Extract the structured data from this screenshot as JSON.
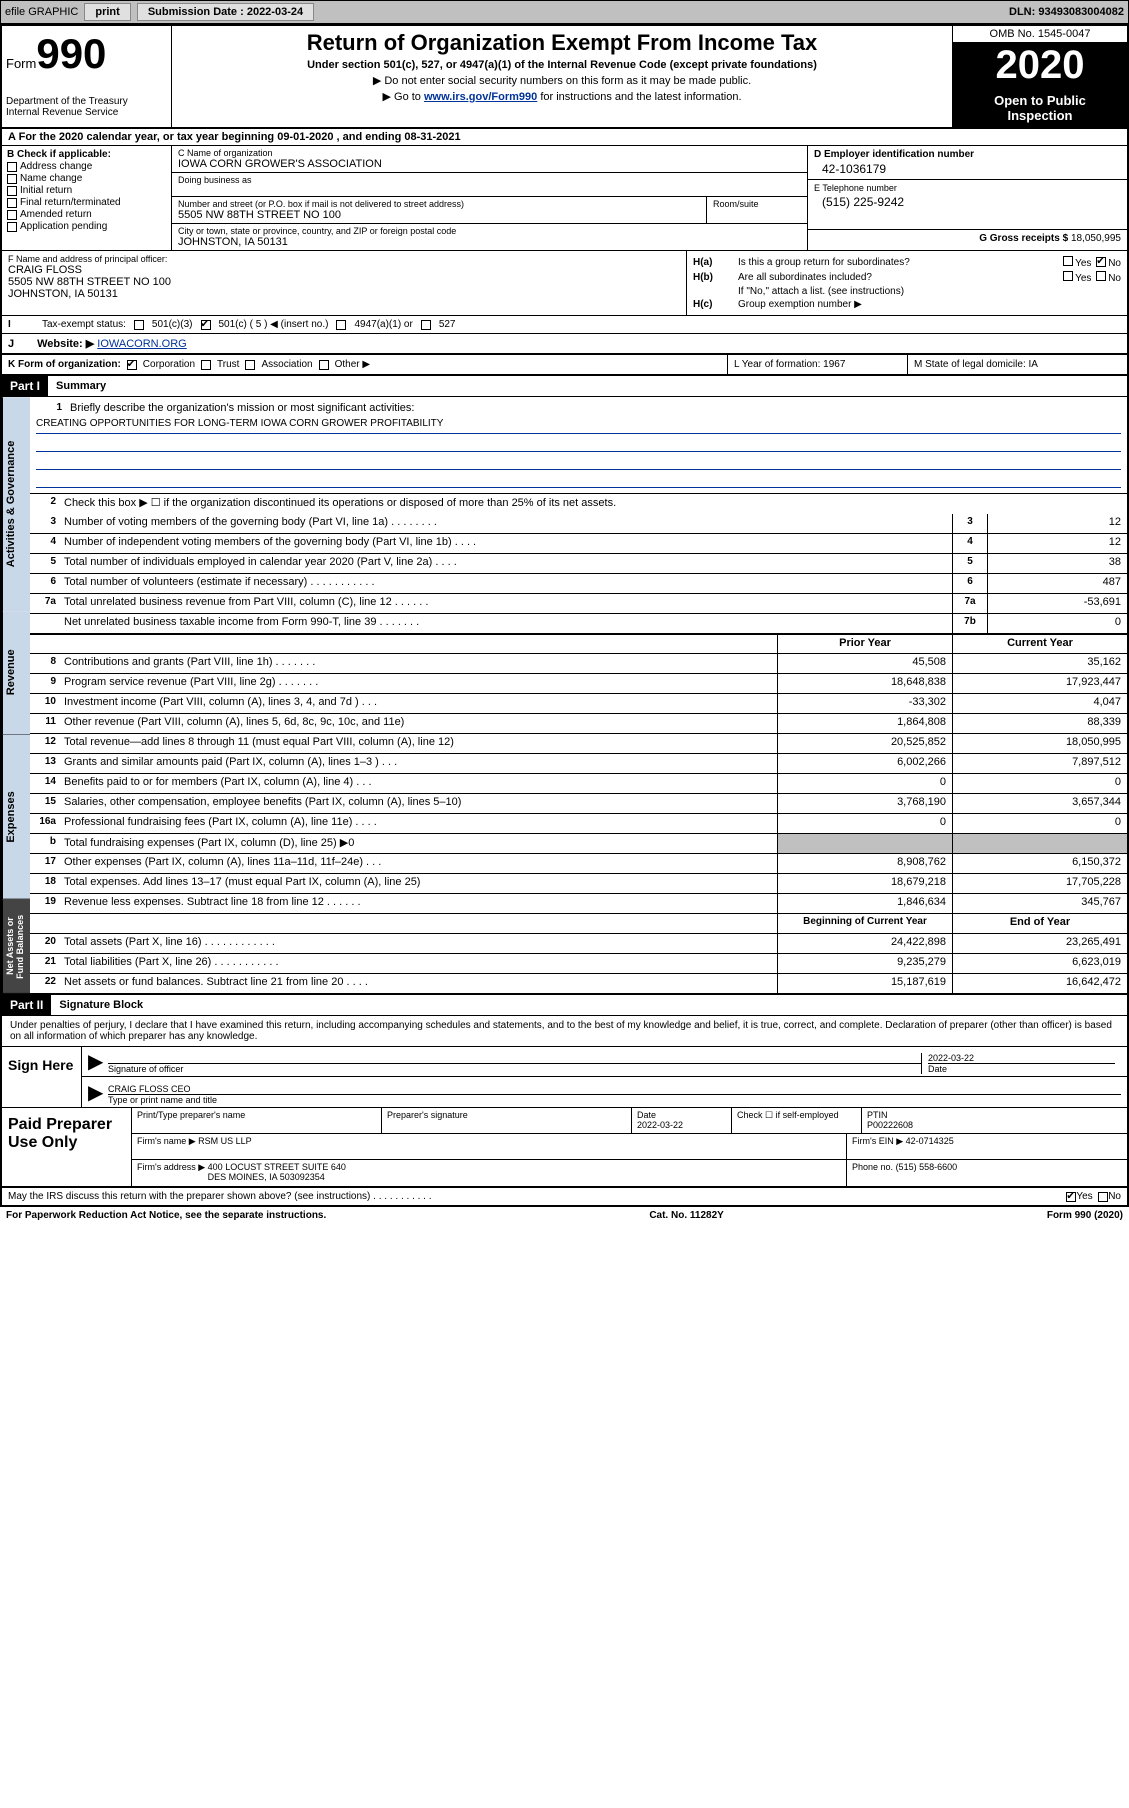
{
  "topbar": {
    "efile": "efile GRAPHIC",
    "print": "print",
    "sub_label": "Submission Date : 2022-03-24",
    "dln": "DLN: 93493083004082"
  },
  "header": {
    "form_word": "Form",
    "form_num": "990",
    "dept": "Department of the Treasury\nInternal Revenue Service",
    "title": "Return of Organization Exempt From Income Tax",
    "sub": "Under section 501(c), 527, or 4947(a)(1) of the Internal Revenue Code (except private foundations)",
    "note1": "▶ Do not enter social security numbers on this form as it may be made public.",
    "note2_pre": "▶ Go to ",
    "note2_link": "www.irs.gov/Form990",
    "note2_post": " for instructions and the latest information.",
    "omb": "OMB No. 1545-0047",
    "year": "2020",
    "open_pub": "Open to Public\nInspection"
  },
  "line_a": "For the 2020 calendar year, or tax year beginning 09-01-2020    , and ending 08-31-2021",
  "col_b": {
    "label": "B Check if applicable:",
    "opts": [
      "Address change",
      "Name change",
      "Initial return",
      "Final return/terminated",
      "Amended return",
      "Application pending"
    ]
  },
  "col_c": {
    "name_label": "C Name of organization",
    "name": "IOWA CORN GROWER'S ASSOCIATION",
    "dba_label": "Doing business as",
    "addr_label": "Number and street (or P.O. box if mail is not delivered to street address)",
    "addr": "5505 NW 88TH STREET NO 100",
    "room_label": "Room/suite",
    "city_label": "City or town, state or province, country, and ZIP or foreign postal code",
    "city": "JOHNSTON, IA  50131"
  },
  "col_d": {
    "label": "D Employer identification number",
    "val": "42-1036179"
  },
  "col_e": {
    "label": "E Telephone number",
    "val": "(515) 225-9242"
  },
  "col_g": {
    "label": "G Gross receipts $",
    "val": "18,050,995"
  },
  "col_f": {
    "label": "F  Name and address of principal officer:",
    "name": "CRAIG FLOSS",
    "addr": "5505 NW 88TH STREET NO 100\nJOHNSTON, IA  50131"
  },
  "col_h": {
    "a": "Is this a group return for subordinates?",
    "b": "Are all subordinates included?",
    "note": "If \"No,\" attach a list. (see instructions)",
    "c": "Group exemption number ▶"
  },
  "status": {
    "label": "Tax-exempt status:",
    "o1": "501(c)(3)",
    "o2": "501(c) ( 5 ) ◀ (insert no.)",
    "o3": "4947(a)(1) or",
    "o4": "527"
  },
  "line_j": {
    "label": "J",
    "text": "Website: ▶",
    "val": "IOWACORN.ORG"
  },
  "line_k": {
    "label": "K Form of organization:",
    "opts": [
      "Corporation",
      "Trust",
      "Association",
      "Other ▶"
    ],
    "l": "L Year of formation: 1967",
    "m": "M State of legal domicile: IA"
  },
  "part1": {
    "hdr": "Part I",
    "title": "Summary",
    "tabs": [
      "Activities & Governance",
      "Revenue",
      "Expenses",
      "Net Assets or\nFund Balances"
    ],
    "mission_label": "Briefly describe the organization's mission or most significant activities:",
    "mission": "CREATING OPPORTUNITIES FOR LONG-TERM IOWA CORN GROWER PROFITABILITY",
    "line2": "Check this box ▶ ☐  if the organization discontinued its operations or disposed of more than 25% of its net assets.",
    "lines_gov": [
      {
        "n": "3",
        "t": "Number of voting members of the governing body (Part VI, line 1a)   .   .   .   .   .   .   .   .",
        "c": "3",
        "v": "12"
      },
      {
        "n": "4",
        "t": "Number of independent voting members of the governing body (Part VI, line 1b)   .   .   .   .",
        "c": "4",
        "v": "12"
      },
      {
        "n": "5",
        "t": "Total number of individuals employed in calendar year 2020 (Part V, line 2a)   .   .   .   .",
        "c": "5",
        "v": "38"
      },
      {
        "n": "6",
        "t": "Total number of volunteers (estimate if necessary)   .   .   .   .   .   .   .   .   .   .   .",
        "c": "6",
        "v": "487"
      },
      {
        "n": "7a",
        "t": "Total unrelated business revenue from Part VIII, column (C), line 12   .   .   .   .   .   .",
        "c": "7a",
        "v": "-53,691"
      },
      {
        "n": "",
        "t": "Net unrelated business taxable income from Form 990-T, line 39   .   .   .   .   .   .   .",
        "c": "7b",
        "v": "0"
      }
    ],
    "col_hdr_prior": "Prior Year",
    "col_hdr_curr": "Current Year",
    "lines_rev": [
      {
        "n": "8",
        "t": "Contributions and grants (Part VIII, line 1h)   .   .   .   .   .   .   .",
        "p": "45,508",
        "c": "35,162"
      },
      {
        "n": "9",
        "t": "Program service revenue (Part VIII, line 2g)   .   .   .   .   .   .   .",
        "p": "18,648,838",
        "c": "17,923,447"
      },
      {
        "n": "10",
        "t": "Investment income (Part VIII, column (A), lines 3, 4, and 7d )   .   .   .",
        "p": "-33,302",
        "c": "4,047"
      },
      {
        "n": "11",
        "t": "Other revenue (Part VIII, column (A), lines 5, 6d, 8c, 9c, 10c, and 11e)",
        "p": "1,864,808",
        "c": "88,339"
      },
      {
        "n": "12",
        "t": "Total revenue—add lines 8 through 11 (must equal Part VIII, column (A), line 12)",
        "p": "20,525,852",
        "c": "18,050,995"
      }
    ],
    "lines_exp": [
      {
        "n": "13",
        "t": "Grants and similar amounts paid (Part IX, column (A), lines 1–3 )   .   .   .",
        "p": "6,002,266",
        "c": "7,897,512"
      },
      {
        "n": "14",
        "t": "Benefits paid to or for members (Part IX, column (A), line 4)   .   .   .",
        "p": "0",
        "c": "0"
      },
      {
        "n": "15",
        "t": "Salaries, other compensation, employee benefits (Part IX, column (A), lines 5–10)",
        "p": "3,768,190",
        "c": "3,657,344"
      },
      {
        "n": "16a",
        "t": "Professional fundraising fees (Part IX, column (A), line 11e)   .   .   .   .",
        "p": "0",
        "c": "0"
      },
      {
        "n": "b",
        "t": "Total fundraising expenses (Part IX, column (D), line 25) ▶0",
        "p": "",
        "c": "",
        "shade": true
      },
      {
        "n": "17",
        "t": "Other expenses (Part IX, column (A), lines 11a–11d, 11f–24e)   .   .   .",
        "p": "8,908,762",
        "c": "6,150,372"
      },
      {
        "n": "18",
        "t": "Total expenses. Add lines 13–17 (must equal Part IX, column (A), line 25)",
        "p": "18,679,218",
        "c": "17,705,228"
      },
      {
        "n": "19",
        "t": "Revenue less expenses. Subtract line 18 from line 12   .   .   .   .   .   .",
        "p": "1,846,634",
        "c": "345,767"
      }
    ],
    "col_hdr_beg": "Beginning of Current Year",
    "col_hdr_end": "End of Year",
    "lines_net": [
      {
        "n": "20",
        "t": "Total assets (Part X, line 16)   .   .   .   .   .   .   .   .   .   .   .   .",
        "p": "24,422,898",
        "c": "23,265,491"
      },
      {
        "n": "21",
        "t": "Total liabilities (Part X, line 26)   .   .   .   .   .   .   .   .   .   .   .",
        "p": "9,235,279",
        "c": "6,623,019"
      },
      {
        "n": "22",
        "t": "Net assets or fund balances. Subtract line 21 from line 20   .   .   .   .",
        "p": "15,187,619",
        "c": "16,642,472"
      }
    ]
  },
  "part2": {
    "hdr": "Part II",
    "title": "Signature Block",
    "intro": "Under penalties of perjury, I declare that I have examined this return, including accompanying schedules and statements, and to the best of my knowledge and belief, it is true, correct, and complete. Declaration of preparer (other than officer) is based on all information of which preparer has any knowledge.",
    "sign_here": "Sign Here",
    "sig_officer": "Signature of officer",
    "sig_date": "2022-03-22",
    "date_label": "Date",
    "officer_name": "CRAIG FLOSS CEO",
    "name_label": "Type or print name and title",
    "paid": "Paid Preparer Use Only",
    "prep_name_label": "Print/Type preparer's name",
    "prep_sig_label": "Preparer's signature",
    "prep_date_label": "Date",
    "prep_date": "2022-03-22",
    "check_self": "Check ☐ if self-employed",
    "ptin_label": "PTIN",
    "ptin": "P00222608",
    "firm_name_label": "Firm's name    ▶",
    "firm_name": "RSM US LLP",
    "firm_ein_label": "Firm's EIN ▶",
    "firm_ein": "42-0714325",
    "firm_addr_label": "Firm's address ▶",
    "firm_addr": "400 LOCUST STREET SUITE 640\nDES MOINES, IA  503092354",
    "phone_label": "Phone no.",
    "phone": "(515) 558-6600",
    "discuss": "May the IRS discuss this return with the preparer shown above? (see instructions)   .   .   .   .   .   .   .   .   .   .   .",
    "yes": "Yes",
    "no": "No"
  },
  "footer": {
    "left": "For Paperwork Reduction Act Notice, see the separate instructions.",
    "mid": "Cat. No. 11282Y",
    "right": "Form 990 (2020)"
  }
}
